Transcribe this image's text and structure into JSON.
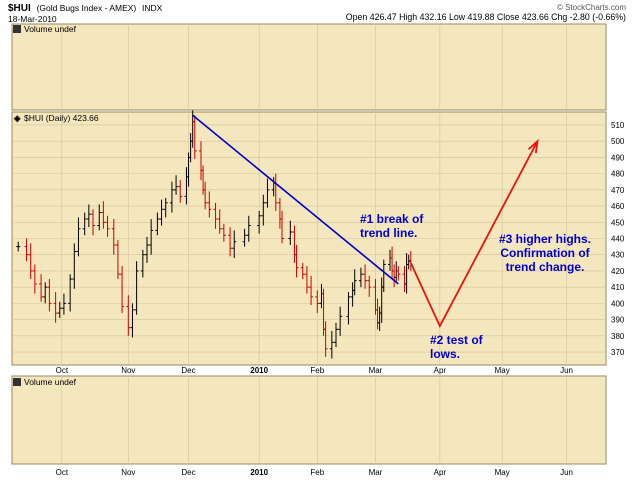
{
  "header": {
    "symbol": "$HUI",
    "name": "(Gold Bugs Index - AMEX)",
    "exchange": "INDX",
    "date": "18-Mar-2010",
    "quote": "Open 426.47  High 432.16  Low 419.88  Close 423.66  Chg -2.80 (-0.66%)",
    "source": "© StockCharts.com"
  },
  "panels": {
    "top_volume_label": "Volume undef",
    "price_label": "$HUI (Daily) 423.66",
    "bottom_volume_label": "Volume undef"
  },
  "colors": {
    "plot_background": "#f4e6bd",
    "grid": "#d4c49a",
    "up_bar": "#000000",
    "down_bar": "#cc0000",
    "trendline": "#0000cc",
    "projection": "#ee1111",
    "annotation_text": "#0000cc"
  },
  "chart_data": {
    "type": "ohlc",
    "title": "$HUI (Gold Bugs Index - AMEX) INDX",
    "series_label": "$HUI (Daily) 423.66",
    "ylim": [
      362,
      518
    ],
    "y_ticks": [
      370,
      380,
      390,
      400,
      410,
      420,
      430,
      440,
      450,
      460,
      470,
      480,
      490,
      500,
      510
    ],
    "x_ticks": [
      "Oct",
      "Nov",
      "Dec",
      "2010",
      "Feb",
      "Mar",
      "Apr",
      "May",
      "Jun"
    ],
    "x_tick_dates": [
      "2009-10-01",
      "2009-11-02",
      "2009-12-01",
      "2010-01-04",
      "2010-02-01",
      "2010-03-01",
      "2010-04-01",
      "2010-05-01",
      "2010-06-01"
    ],
    "closes": [
      {
        "date": "2009-09-10",
        "close": 435
      },
      {
        "date": "2009-09-14",
        "close": 430
      },
      {
        "date": "2009-09-16",
        "close": 420
      },
      {
        "date": "2009-09-18",
        "close": 412
      },
      {
        "date": "2009-09-21",
        "close": 404
      },
      {
        "date": "2009-09-23",
        "close": 410
      },
      {
        "date": "2009-09-25",
        "close": 400
      },
      {
        "date": "2009-09-28",
        "close": 394
      },
      {
        "date": "2009-09-30",
        "close": 397
      },
      {
        "date": "2009-10-02",
        "close": 400
      },
      {
        "date": "2009-10-05",
        "close": 415
      },
      {
        "date": "2009-10-07",
        "close": 432
      },
      {
        "date": "2009-10-09",
        "close": 446
      },
      {
        "date": "2009-10-12",
        "close": 452
      },
      {
        "date": "2009-10-14",
        "close": 455
      },
      {
        "date": "2009-10-16",
        "close": 448
      },
      {
        "date": "2009-10-19",
        "close": 456
      },
      {
        "date": "2009-10-21",
        "close": 450
      },
      {
        "date": "2009-10-23",
        "close": 446
      },
      {
        "date": "2009-10-26",
        "close": 436
      },
      {
        "date": "2009-10-28",
        "close": 418
      },
      {
        "date": "2009-10-30",
        "close": 398
      },
      {
        "date": "2009-11-02",
        "close": 385
      },
      {
        "date": "2009-11-04",
        "close": 396
      },
      {
        "date": "2009-11-06",
        "close": 420
      },
      {
        "date": "2009-11-09",
        "close": 430
      },
      {
        "date": "2009-11-11",
        "close": 436
      },
      {
        "date": "2009-11-13",
        "close": 445
      },
      {
        "date": "2009-11-16",
        "close": 452
      },
      {
        "date": "2009-11-18",
        "close": 458
      },
      {
        "date": "2009-11-20",
        "close": 462
      },
      {
        "date": "2009-11-23",
        "close": 470
      },
      {
        "date": "2009-11-25",
        "close": 472
      },
      {
        "date": "2009-11-27",
        "close": 466
      },
      {
        "date": "2009-11-30",
        "close": 478
      },
      {
        "date": "2009-12-01",
        "close": 490
      },
      {
        "date": "2009-12-02",
        "close": 500
      },
      {
        "date": "2009-12-03",
        "close": 512
      },
      {
        "date": "2009-12-04",
        "close": 494
      },
      {
        "date": "2009-12-07",
        "close": 482
      },
      {
        "date": "2009-12-08",
        "close": 470
      },
      {
        "date": "2009-12-09",
        "close": 462
      },
      {
        "date": "2009-12-11",
        "close": 458
      },
      {
        "date": "2009-12-14",
        "close": 452
      },
      {
        "date": "2009-12-16",
        "close": 446
      },
      {
        "date": "2009-12-18",
        "close": 442
      },
      {
        "date": "2009-12-21",
        "close": 434
      },
      {
        "date": "2009-12-23",
        "close": 438
      },
      {
        "date": "2009-12-28",
        "close": 442
      },
      {
        "date": "2009-12-30",
        "close": 448
      },
      {
        "date": "2010-01-04",
        "close": 454
      },
      {
        "date": "2010-01-06",
        "close": 462
      },
      {
        "date": "2010-01-08",
        "close": 470
      },
      {
        "date": "2010-01-11",
        "close": 474
      },
      {
        "date": "2010-01-12",
        "close": 462
      },
      {
        "date": "2010-01-14",
        "close": 452
      },
      {
        "date": "2010-01-15",
        "close": 440
      },
      {
        "date": "2010-01-19",
        "close": 444
      },
      {
        "date": "2010-01-21",
        "close": 430
      },
      {
        "date": "2010-01-22",
        "close": 422
      },
      {
        "date": "2010-01-25",
        "close": 418
      },
      {
        "date": "2010-01-27",
        "close": 410
      },
      {
        "date": "2010-01-29",
        "close": 404
      },
      {
        "date": "2010-02-01",
        "close": 400
      },
      {
        "date": "2010-02-03",
        "close": 406
      },
      {
        "date": "2010-02-04",
        "close": 384
      },
      {
        "date": "2010-02-05",
        "close": 372
      },
      {
        "date": "2010-02-08",
        "close": 376
      },
      {
        "date": "2010-02-10",
        "close": 384
      },
      {
        "date": "2010-02-12",
        "close": 392
      },
      {
        "date": "2010-02-16",
        "close": 404
      },
      {
        "date": "2010-02-18",
        "close": 408
      },
      {
        "date": "2010-02-19",
        "close": 414
      },
      {
        "date": "2010-02-22",
        "close": 418
      },
      {
        "date": "2010-02-24",
        "close": 414
      },
      {
        "date": "2010-02-26",
        "close": 410
      },
      {
        "date": "2010-03-01",
        "close": 396
      },
      {
        "date": "2010-03-02",
        "close": 388
      },
      {
        "date": "2010-03-03",
        "close": 394
      },
      {
        "date": "2010-03-04",
        "close": 410
      },
      {
        "date": "2010-03-05",
        "close": 424
      },
      {
        "date": "2010-03-08",
        "close": 428
      },
      {
        "date": "2010-03-09",
        "close": 420
      },
      {
        "date": "2010-03-10",
        "close": 416
      },
      {
        "date": "2010-03-11",
        "close": 420
      },
      {
        "date": "2010-03-12",
        "close": 418
      },
      {
        "date": "2010-03-15",
        "close": 412
      },
      {
        "date": "2010-03-16",
        "close": 424
      },
      {
        "date": "2010-03-17",
        "close": 426
      },
      {
        "date": "2010-03-18",
        "close": 423.66
      }
    ],
    "last_bar": {
      "date": "2010-03-18",
      "open": 426.47,
      "high": 432.16,
      "low": 419.88,
      "close": 423.66
    },
    "trendline": {
      "x1": "2009-12-03",
      "y1": 516,
      "x2": "2010-03-12",
      "y2": 412
    },
    "projection": [
      {
        "date": "2010-03-18",
        "value": 425
      },
      {
        "date": "2010-04-01",
        "value": 386
      },
      {
        "date": "2010-05-18",
        "value": 500
      }
    ],
    "annotations": [
      {
        "lines": [
          "#1 break of",
          "trend line."
        ]
      },
      {
        "lines": [
          "#2 test of",
          "lows."
        ]
      },
      {
        "lines": [
          "#3 higher highs.",
          "Confirmation of",
          "trend change."
        ]
      }
    ]
  }
}
